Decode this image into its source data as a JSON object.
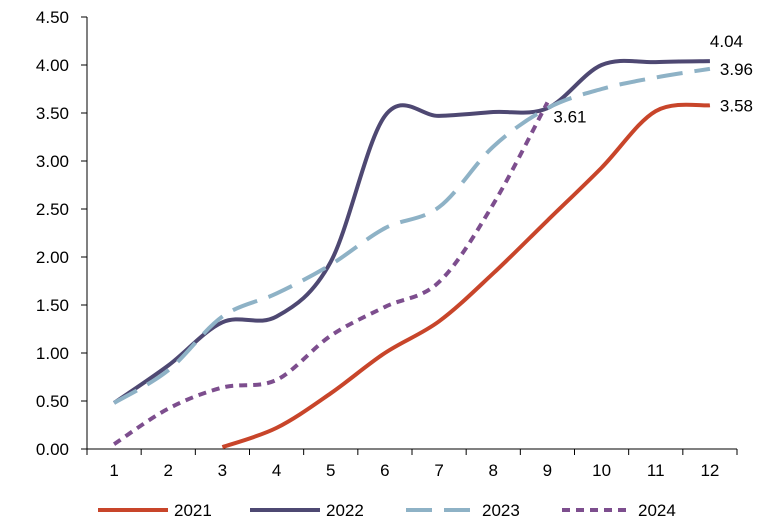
{
  "chart_data": {
    "type": "line",
    "x": [
      1,
      2,
      3,
      4,
      5,
      6,
      7,
      8,
      9,
      10,
      11,
      12
    ],
    "xticks": [
      "1",
      "2",
      "3",
      "4",
      "5",
      "6",
      "7",
      "8",
      "9",
      "10",
      "11",
      "12"
    ],
    "yticks": [
      "0.00",
      "0.50",
      "1.00",
      "1.50",
      "2.00",
      "2.50",
      "3.00",
      "3.50",
      "4.00",
      "4.50"
    ],
    "ylim": [
      0,
      4.5
    ],
    "grid": false,
    "legend": "bottom",
    "series": [
      {
        "name": "2021",
        "color": "#C8452A",
        "dash": "solid",
        "values": [
          null,
          null,
          0.02,
          0.22,
          0.58,
          1.0,
          1.33,
          1.83,
          2.38,
          2.93,
          3.52,
          3.58
        ],
        "end_label": "3.58"
      },
      {
        "name": "2022",
        "color": "#4E4872",
        "dash": "solid",
        "values": [
          0.48,
          0.87,
          1.32,
          1.38,
          1.95,
          3.47,
          3.47,
          3.51,
          3.55,
          4.0,
          4.03,
          4.04
        ],
        "end_label": "4.04"
      },
      {
        "name": "2023",
        "color": "#8EB2C6",
        "dash": "long-dash",
        "values": [
          0.48,
          0.82,
          1.38,
          1.62,
          1.92,
          2.3,
          2.52,
          3.15,
          3.55,
          3.75,
          3.87,
          3.96
        ],
        "end_label": "3.96"
      },
      {
        "name": "2024",
        "color": "#7D4E8E",
        "dash": "short-dash",
        "values": [
          0.05,
          0.42,
          0.64,
          0.72,
          1.18,
          1.48,
          1.74,
          2.55,
          3.61,
          null,
          null,
          null
        ],
        "end_label": "3.61"
      }
    ]
  }
}
